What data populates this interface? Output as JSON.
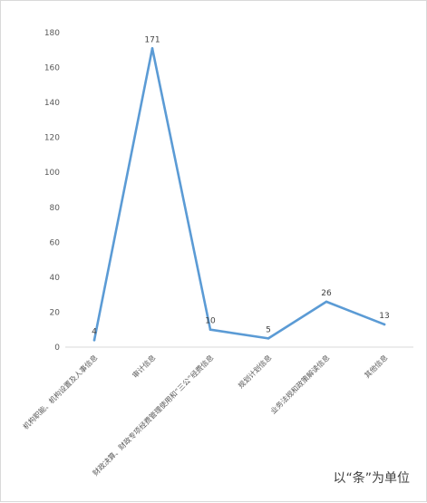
{
  "chart_data": {
    "type": "line",
    "categories": [
      "机构职能、机构设置及人事信息",
      "审计信息",
      "财政决算、财政专项经费管理使用和“三公”经费信息",
      "规划计划信息",
      "业务法规和政策解读信息",
      "其他信息"
    ],
    "values": [
      4,
      171,
      10,
      5,
      26,
      13
    ],
    "data_labels": [
      "4",
      "171",
      "10",
      "5",
      "26",
      "13"
    ],
    "title": "",
    "xlabel": "",
    "ylabel": "",
    "ylim": [
      0,
      180
    ],
    "yticks": [
      0,
      20,
      40,
      60,
      80,
      100,
      120,
      140,
      160,
      180
    ],
    "grid": false,
    "legend": "none",
    "line_color": "#5b9bd5",
    "unit_note": "以“条”为单位"
  }
}
